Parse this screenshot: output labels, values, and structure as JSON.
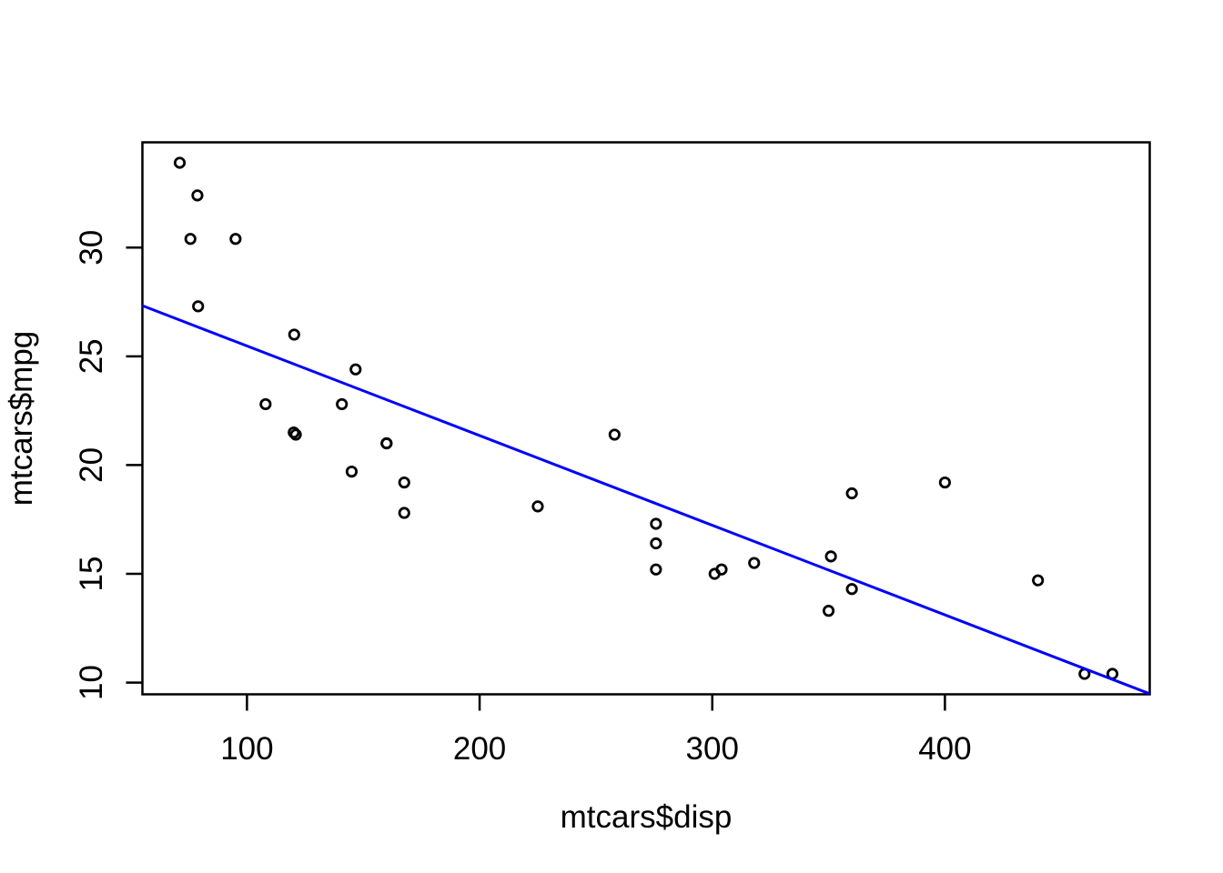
{
  "chart_data": {
    "type": "scatter",
    "title": "",
    "xlabel": "mtcars$disp",
    "ylabel": "mtcars$mpg",
    "xlim": [
      55.06,
      488.04
    ],
    "ylim": [
      9.46,
      34.84
    ],
    "x_ticks": [
      100,
      200,
      300,
      400
    ],
    "y_ticks": [
      10,
      15,
      20,
      25,
      30
    ],
    "grid": false,
    "legend": "none",
    "marker": {
      "shape": "open-circle",
      "color": "#000000"
    },
    "points": [
      [
        160.0,
        21.0
      ],
      [
        160.0,
        21.0
      ],
      [
        108.0,
        22.8
      ],
      [
        258.0,
        21.4
      ],
      [
        360.0,
        18.7
      ],
      [
        225.0,
        18.1
      ],
      [
        360.0,
        14.3
      ],
      [
        146.7,
        24.4
      ],
      [
        140.8,
        22.8
      ],
      [
        167.6,
        19.2
      ],
      [
        167.6,
        17.8
      ],
      [
        275.8,
        16.4
      ],
      [
        275.8,
        17.3
      ],
      [
        275.8,
        15.2
      ],
      [
        472.0,
        10.4
      ],
      [
        460.0,
        10.4
      ],
      [
        440.0,
        14.7
      ],
      [
        78.7,
        32.4
      ],
      [
        75.7,
        30.4
      ],
      [
        71.1,
        33.9
      ],
      [
        120.1,
        21.5
      ],
      [
        318.0,
        15.5
      ],
      [
        304.0,
        15.2
      ],
      [
        350.0,
        13.3
      ],
      [
        400.0,
        19.2
      ],
      [
        79.0,
        27.3
      ],
      [
        120.3,
        26.0
      ],
      [
        95.1,
        30.4
      ],
      [
        351.0,
        15.8
      ],
      [
        145.0,
        19.7
      ],
      [
        301.0,
        15.0
      ],
      [
        121.0,
        21.4
      ]
    ],
    "regression_line": {
      "intercept": 29.59985,
      "slope": -0.04122,
      "color": "#0000ff"
    }
  },
  "colors": {
    "background": "#ffffff",
    "axis": "#000000"
  }
}
